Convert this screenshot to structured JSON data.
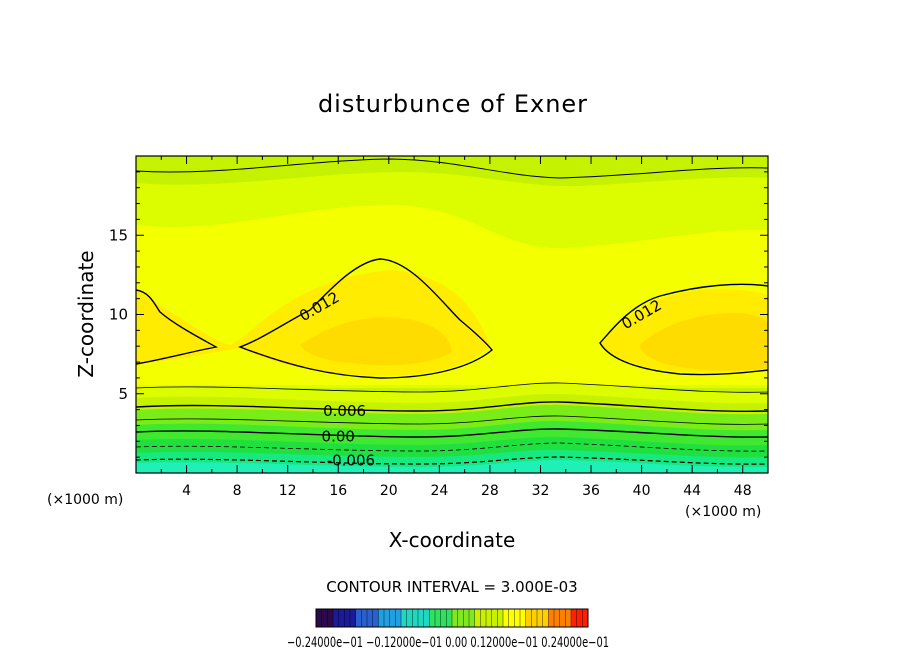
{
  "chart_data": {
    "type": "contour",
    "title": "disturbunce of Exner",
    "xlabel": "X-coordinate",
    "ylabel": "Z-coordinate",
    "x_unit": "(×1000 m)",
    "xlim": [
      0,
      50
    ],
    "ylim": [
      0,
      20
    ],
    "x_ticks": [
      "4",
      "8",
      "12",
      "16",
      "20",
      "24",
      "28",
      "32",
      "36",
      "40",
      "44",
      "48"
    ],
    "y_ticks": [
      "5",
      "10",
      "15"
    ],
    "contour_interval_text": "CONTOUR INTERVAL = 3.000E-03",
    "contour_labels": [
      {
        "text": "0.012",
        "x": 14.5,
        "y": 10.5
      },
      {
        "text": "0.012",
        "x": 40.0,
        "y": 10.0
      },
      {
        "text": "0.006",
        "x": 16.5,
        "y": 3.9
      },
      {
        "text": "0.00",
        "x": 16.0,
        "y": 2.3
      },
      {
        "text": "-0.006",
        "x": 17.0,
        "y": 0.8
      }
    ],
    "colorbar": {
      "colors": [
        "#2a0a4a",
        "#1a1a9a",
        "#2860d0",
        "#20a0e0",
        "#20d8c0",
        "#30e060",
        "#80e820",
        "#c8f000",
        "#ffff00",
        "#ffd000",
        "#ff8000",
        "#ff2000"
      ],
      "labels_text": "−0.24000e−01  −0.12000e−01  0.00  0.12000e−01  0.24000e−01"
    },
    "field_colors": {
      "cyan": "#1ef0b8",
      "green_dark": "#20e040",
      "green": "#40e830",
      "green_light": "#7aec18",
      "yellow_green": "#c4f200",
      "yellow_green2": "#dcfc00",
      "yellow": "#f4ff00",
      "yellow2": "#ffec00",
      "orange_yellow": "#ffdc00"
    }
  }
}
